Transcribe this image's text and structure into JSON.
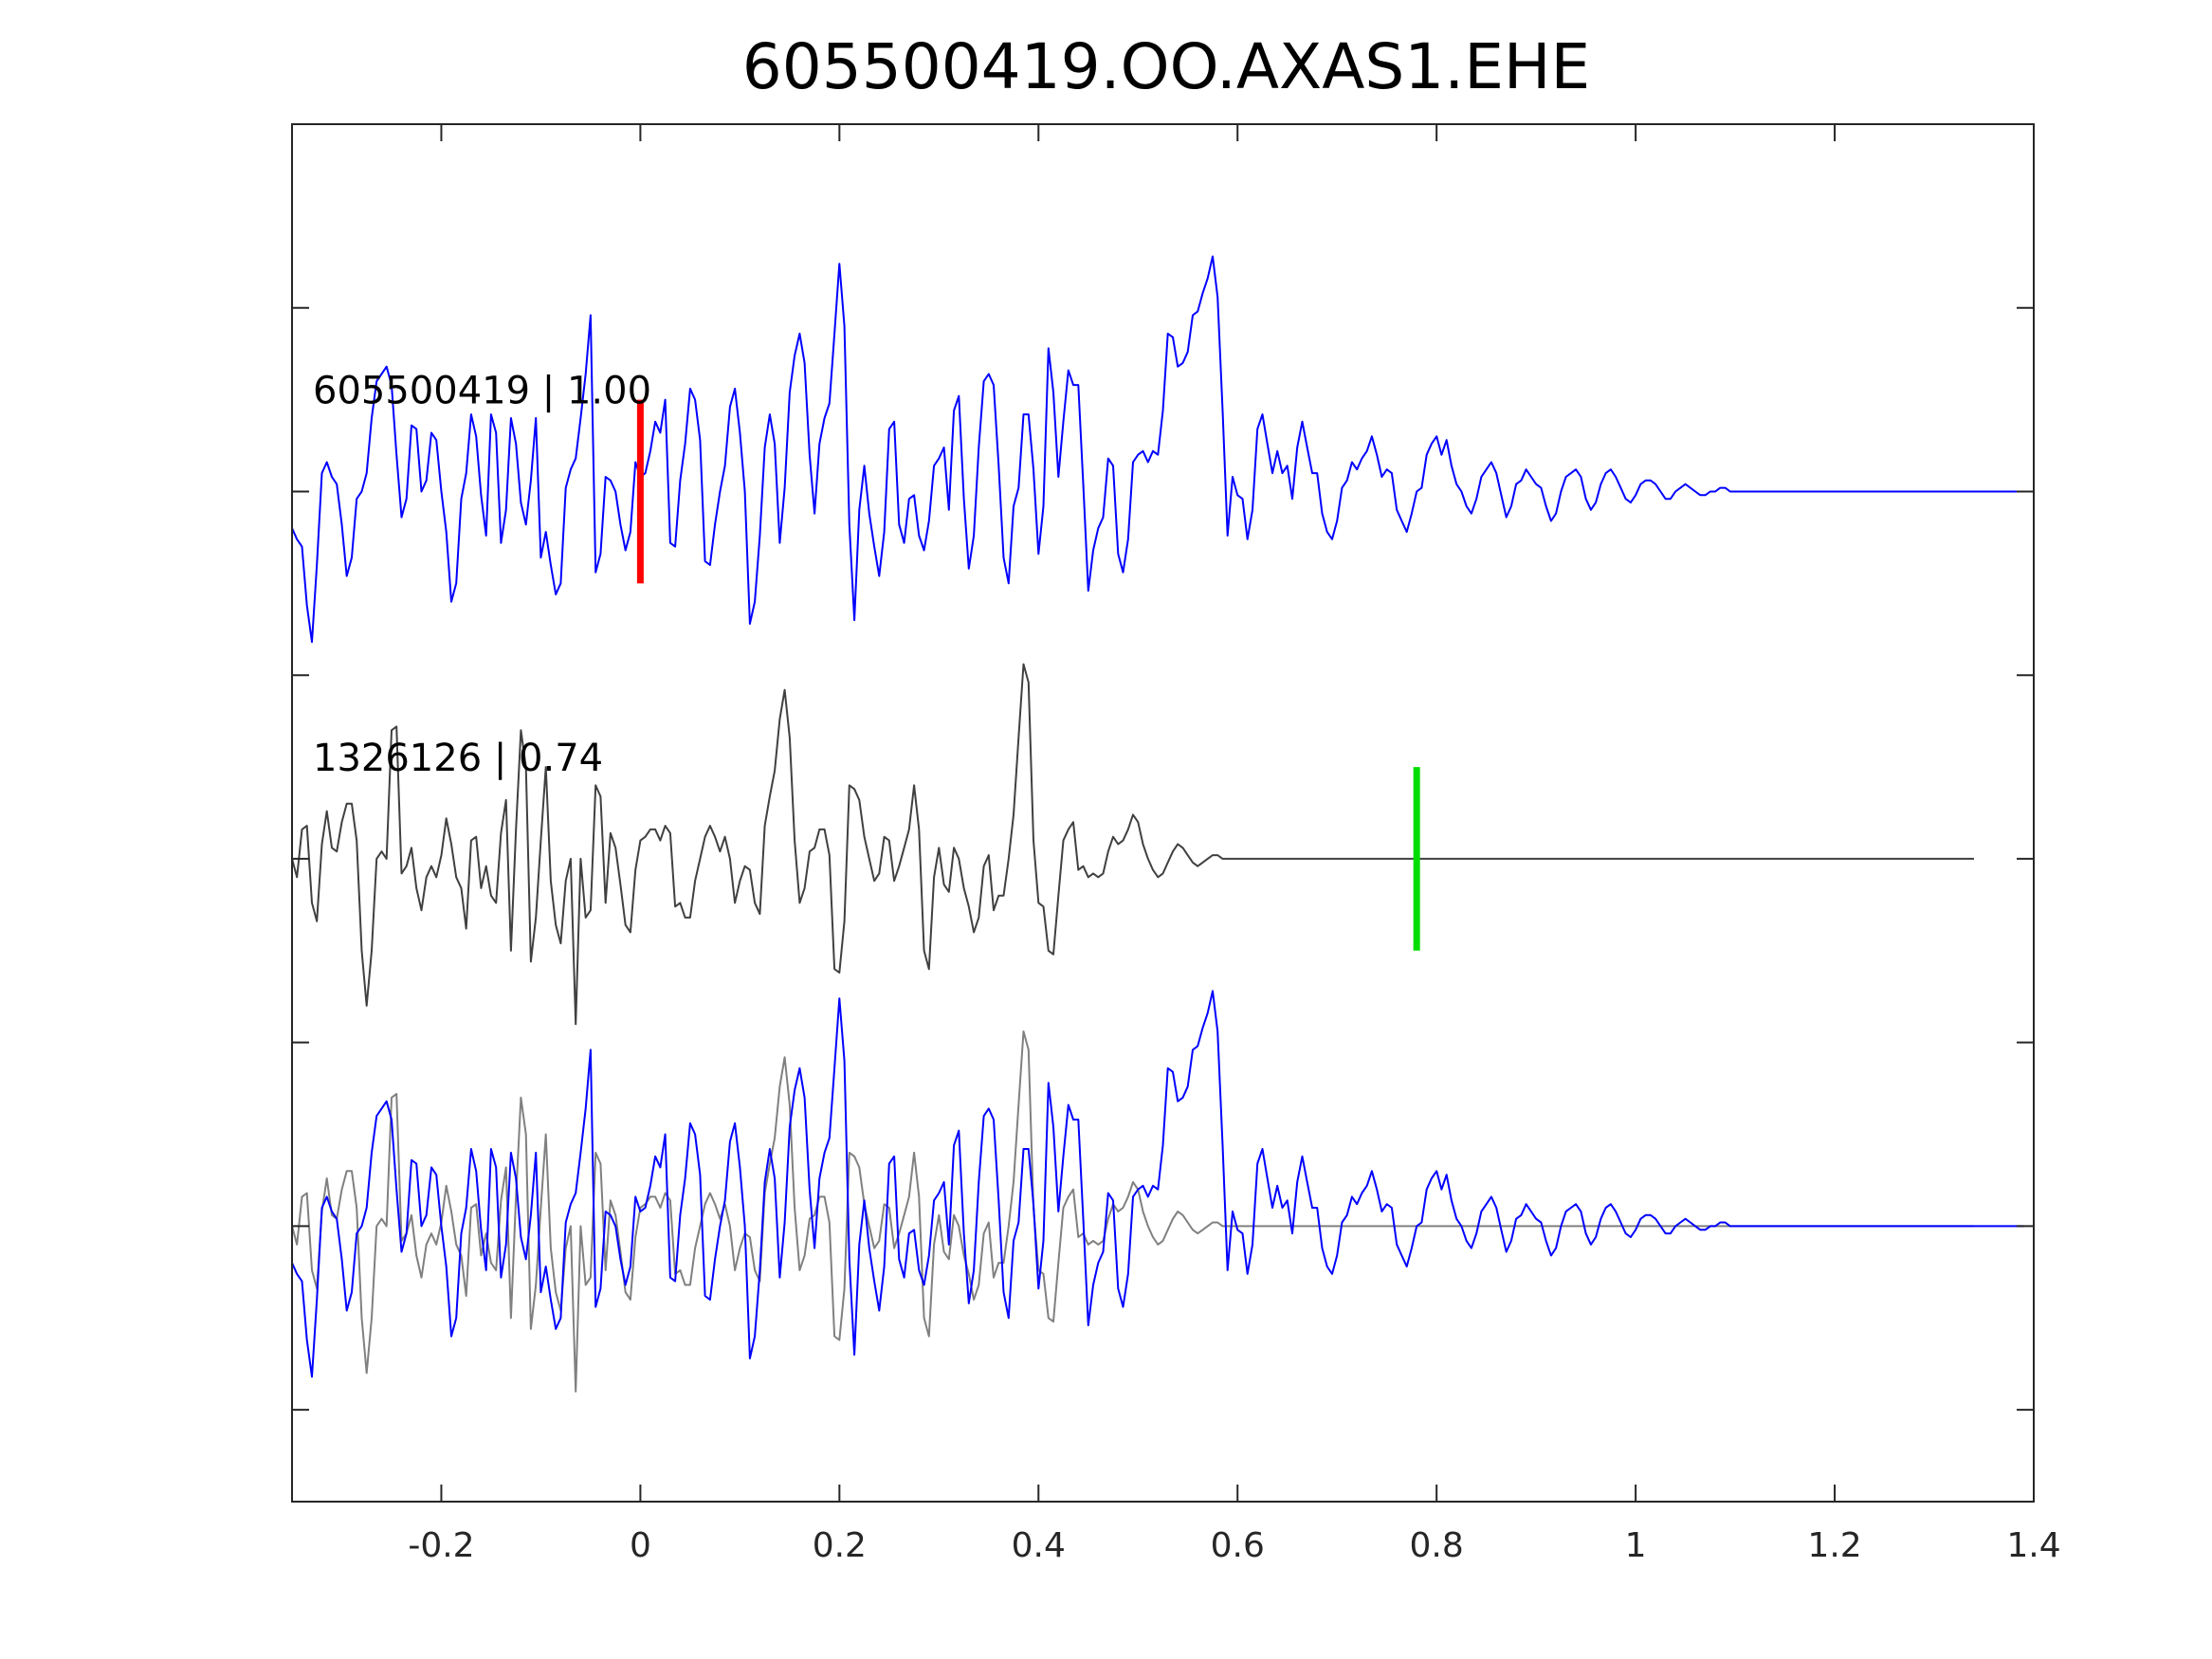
{
  "chart_data": {
    "type": "line",
    "title": "605500419.OO.AXAS1.EHE",
    "xlabel": "",
    "ylabel": "",
    "xlim": [
      -0.35,
      1.4
    ],
    "ylim": [
      -2.75,
      1.0
    ],
    "x_ticks": [
      -0.2,
      0,
      0.2,
      0.4,
      0.6,
      0.8,
      1,
      1.2,
      1.4
    ],
    "x_tick_labels": [
      "-0.2",
      "0",
      "0.2",
      "0.4",
      "0.6",
      "0.8",
      "1",
      "1.2",
      "1.4"
    ],
    "y_ticks": [
      -2.5,
      -2.0,
      -1.5,
      -1.0,
      -0.5,
      0.0,
      0.5
    ],
    "y_tick_labels": [
      "",
      "",
      "",
      "",
      "",
      "",
      ""
    ],
    "grid": false,
    "sample_interval_s": 0.005,
    "traces": [
      {
        "label": "605500419 | 1.00",
        "offset": 0.0,
        "color": "#0000ff",
        "values": [
          -0.1,
          -0.13,
          -0.15,
          -0.31,
          -0.41,
          -0.2,
          0.05,
          0.08,
          0.04,
          0.02,
          -0.09,
          -0.23,
          -0.18,
          -0.02,
          0.0,
          0.05,
          0.2,
          0.3,
          0.32,
          0.34,
          0.29,
          0.1,
          -0.07,
          -0.02,
          0.18,
          0.17,
          0.0,
          0.03,
          0.16,
          0.14,
          0.0,
          -0.11,
          -0.3,
          -0.25,
          -0.02,
          0.05,
          0.21,
          0.15,
          -0.01,
          -0.12,
          0.21,
          0.16,
          -0.14,
          -0.05,
          0.2,
          0.13,
          -0.03,
          -0.09,
          0.03,
          0.2,
          -0.18,
          -0.11,
          -0.2,
          -0.28,
          -0.25,
          0.01,
          0.06,
          0.09,
          0.2,
          0.32,
          0.48,
          -0.22,
          -0.17,
          0.04,
          0.03,
          0.0,
          -0.09,
          -0.16,
          -0.11,
          0.08,
          0.04,
          0.05,
          0.11,
          0.19,
          0.16,
          0.25,
          -0.14,
          -0.15,
          0.03,
          0.13,
          0.28,
          0.25,
          0.14,
          -0.19,
          -0.2,
          -0.09,
          0.0,
          0.07,
          0.23,
          0.28,
          0.16,
          0.0,
          -0.36,
          -0.3,
          -0.12,
          0.12,
          0.21,
          0.13,
          -0.14,
          0.01,
          0.27,
          0.37,
          0.43,
          0.35,
          0.1,
          -0.06,
          0.13,
          0.2,
          0.24,
          0.43,
          0.62,
          0.45,
          -0.09,
          -0.35,
          -0.05,
          0.07,
          -0.06,
          -0.15,
          -0.23,
          -0.11,
          0.17,
          0.19,
          -0.09,
          -0.14,
          -0.02,
          -0.01,
          -0.12,
          -0.16,
          -0.08,
          0.07,
          0.09,
          0.12,
          -0.05,
          0.22,
          0.26,
          -0.02,
          -0.21,
          -0.12,
          0.12,
          0.3,
          0.32,
          0.29,
          0.07,
          -0.18,
          -0.25,
          -0.04,
          0.01,
          0.21,
          0.21,
          0.06,
          -0.17,
          -0.04,
          0.39,
          0.27,
          0.04,
          0.19,
          0.33,
          0.29,
          0.29,
          0.02,
          -0.27,
          -0.16,
          -0.1,
          -0.07,
          0.09,
          0.07,
          -0.17,
          -0.22,
          -0.13,
          0.08,
          0.1,
          0.11,
          0.08,
          0.11,
          0.1,
          0.22,
          0.43,
          0.42,
          0.34,
          0.35,
          0.38,
          0.48,
          0.49,
          0.54,
          0.58,
          0.64,
          0.53,
          0.22,
          -0.12,
          0.04,
          -0.01,
          -0.02,
          -0.13,
          -0.05,
          0.17,
          0.21,
          0.13,
          0.05,
          0.11,
          0.05,
          0.07,
          -0.02,
          0.12,
          0.19,
          0.12,
          0.05,
          0.05,
          -0.06,
          -0.11,
          -0.13,
          -0.08,
          0.01,
          0.03,
          0.08,
          0.06,
          0.09,
          0.11,
          0.15,
          0.1,
          0.04,
          0.06,
          0.05,
          -0.05,
          -0.08,
          -0.11,
          -0.06,
          0.0,
          0.01,
          0.1,
          0.13,
          0.15,
          0.1,
          0.14,
          0.07,
          0.02,
          0.0,
          -0.04,
          -0.06,
          -0.02,
          0.04,
          0.06,
          0.08,
          0.05,
          -0.01,
          -0.07,
          -0.04,
          0.02,
          0.03,
          0.06,
          0.04,
          0.02,
          0.01,
          -0.04,
          -0.08,
          -0.06,
          0.0,
          0.04,
          0.05,
          0.06,
          0.04,
          -0.02,
          -0.05,
          -0.03,
          0.02,
          0.05,
          0.06,
          0.04,
          0.01,
          -0.02,
          -0.03,
          -0.01,
          0.02,
          0.03,
          0.03,
          0.02,
          0.0,
          -0.02,
          -0.02,
          0.0,
          0.01,
          0.02,
          0.01,
          0.0,
          -0.01,
          -0.01,
          0.0,
          0.0,
          0.01,
          0.01,
          0.0,
          0.0,
          0.0,
          0.0,
          0.0,
          0.0,
          0.0,
          0.0,
          0.0,
          0.0,
          0.0,
          0.0,
          0.0,
          0.0,
          0.0,
          0.0,
          0.0,
          0.0,
          0.0,
          0.0,
          0.0,
          0.0,
          0.0,
          0.0,
          0.0,
          0.0,
          0.0,
          0.0,
          0.0,
          0.0,
          0.0,
          0.0,
          0.0,
          0.0,
          0.0,
          0.0,
          0.0,
          0.0,
          0.0,
          0.0,
          0.0,
          0.0,
          0.0,
          0.0,
          0.0,
          0.0,
          0.0,
          0.0,
          0.0,
          0.0,
          0.0,
          0.0,
          0.0,
          0.0,
          0.0,
          0.0,
          0.0,
          0.0,
          0.0,
          0.0
        ],
        "marker": {
          "x": 0.0,
          "color": "#ff0000",
          "half_height": 0.25
        }
      },
      {
        "label": "1326126 | 0.74",
        "offset": -1.0,
        "color": "#404040",
        "values": [
          0.0,
          -0.05,
          0.08,
          0.09,
          -0.12,
          -0.17,
          0.04,
          0.13,
          0.03,
          0.02,
          0.1,
          0.15,
          0.15,
          0.05,
          -0.25,
          -0.4,
          -0.25,
          0.0,
          0.02,
          0.0,
          0.35,
          0.36,
          -0.04,
          -0.02,
          0.03,
          -0.08,
          -0.14,
          -0.05,
          -0.02,
          -0.05,
          0.01,
          0.11,
          0.04,
          -0.05,
          -0.08,
          -0.19,
          0.05,
          0.06,
          -0.08,
          -0.02,
          -0.1,
          -0.12,
          0.07,
          0.16,
          -0.25,
          0.08,
          0.35,
          0.25,
          -0.28,
          -0.16,
          0.05,
          0.25,
          -0.06,
          -0.18,
          -0.23,
          -0.06,
          0.0,
          -0.45,
          0.0,
          -0.16,
          -0.14,
          0.2,
          0.17,
          -0.12,
          0.07,
          0.03,
          -0.07,
          -0.18,
          -0.2,
          -0.03,
          0.05,
          0.06,
          0.08,
          0.08,
          0.05,
          0.09,
          0.07,
          -0.13,
          -0.12,
          -0.16,
          -0.16,
          -0.06,
          0.0,
          0.06,
          0.09,
          0.06,
          0.02,
          0.06,
          0.0,
          -0.12,
          -0.06,
          -0.02,
          -0.03,
          -0.12,
          -0.15,
          0.09,
          0.17,
          0.24,
          0.38,
          0.46,
          0.33,
          0.05,
          -0.12,
          -0.08,
          0.02,
          0.03,
          0.08,
          0.08,
          0.01,
          -0.3,
          -0.31,
          -0.17,
          0.2,
          0.19,
          0.16,
          0.06,
          0.0,
          -0.06,
          -0.04,
          0.06,
          0.05,
          -0.06,
          -0.02,
          0.03,
          0.08,
          0.2,
          0.08,
          -0.25,
          -0.3,
          -0.05,
          0.03,
          -0.07,
          -0.09,
          0.03,
          0.0,
          -0.08,
          -0.13,
          -0.2,
          -0.16,
          -0.02,
          0.01,
          -0.14,
          -0.1,
          -0.1,
          0.0,
          0.12,
          0.33,
          0.53,
          0.48,
          0.05,
          -0.12,
          -0.13,
          -0.25,
          -0.26,
          -0.1,
          0.05,
          0.08,
          0.1,
          -0.03,
          -0.02,
          -0.05,
          -0.04,
          -0.05,
          -0.04,
          0.02,
          0.06,
          0.04,
          0.05,
          0.08,
          0.12,
          0.1,
          0.04,
          0.0,
          -0.03,
          -0.05,
          -0.04,
          -0.01,
          0.02,
          0.04,
          0.03,
          0.01,
          -0.01,
          -0.02,
          -0.01,
          0.0,
          0.01,
          0.01,
          0.0,
          0.0,
          0.0,
          0.0,
          0.0,
          0.0,
          0.0,
          0.0,
          0.0,
          0.0,
          0.0,
          0.0,
          0.0,
          0.0,
          0.0,
          0.0,
          0.0,
          0.0,
          0.0,
          0.0,
          0.0,
          0.0,
          0.0,
          0.0,
          0.0,
          0.0,
          0.0,
          0.0,
          0.0,
          0.0,
          0.0,
          0.0,
          0.0,
          0.0,
          0.0,
          0.0,
          0.0,
          0.0,
          0.0,
          0.0,
          0.0,
          0.0,
          0.0,
          0.0,
          0.0,
          0.0,
          0.0,
          0.0,
          0.0,
          0.0,
          0.0,
          0.0,
          0.0,
          0.0,
          0.0,
          0.0,
          0.0,
          0.0,
          0.0,
          0.0,
          0.0,
          0.0,
          0.0,
          0.0,
          0.0,
          0.0,
          0.0,
          0.0,
          0.0,
          0.0,
          0.0,
          0.0,
          0.0,
          0.0,
          0.0,
          0.0,
          0.0,
          0.0,
          0.0,
          0.0,
          0.0,
          0.0,
          0.0,
          0.0,
          0.0,
          0.0,
          0.0,
          0.0,
          0.0,
          0.0,
          0.0,
          0.0,
          0.0,
          0.0,
          0.0,
          0.0,
          0.0,
          0.0,
          0.0,
          0.0,
          0.0,
          0.0,
          0.0,
          0.0,
          0.0,
          0.0,
          0.0,
          0.0,
          0.0,
          0.0,
          0.0,
          0.0,
          0.0,
          0.0,
          0.0,
          0.0,
          0.0,
          0.0,
          0.0,
          0.0,
          0.0,
          0.0,
          0.0,
          0.0,
          0.0,
          0.0,
          0.0,
          0.0,
          0.0,
          0.0,
          0.0,
          0.0,
          0.0,
          0.0,
          0.0,
          0.0,
          0.0,
          0.0,
          0.0,
          0.0,
          0.0,
          0.0,
          0.0,
          0.0,
          0.0,
          0.0,
          0.0,
          0.0,
          0.0,
          0.0,
          0.0,
          0.0
        ],
        "marker": {
          "x": 0.78,
          "color": "#00dd00",
          "half_height": 0.25
        }
      }
    ],
    "overlay": {
      "offset": -2.0,
      "series": [
        {
          "source_trace": 1,
          "color": "#808080"
        },
        {
          "source_trace": 0,
          "color": "#0000ff"
        }
      ]
    }
  }
}
